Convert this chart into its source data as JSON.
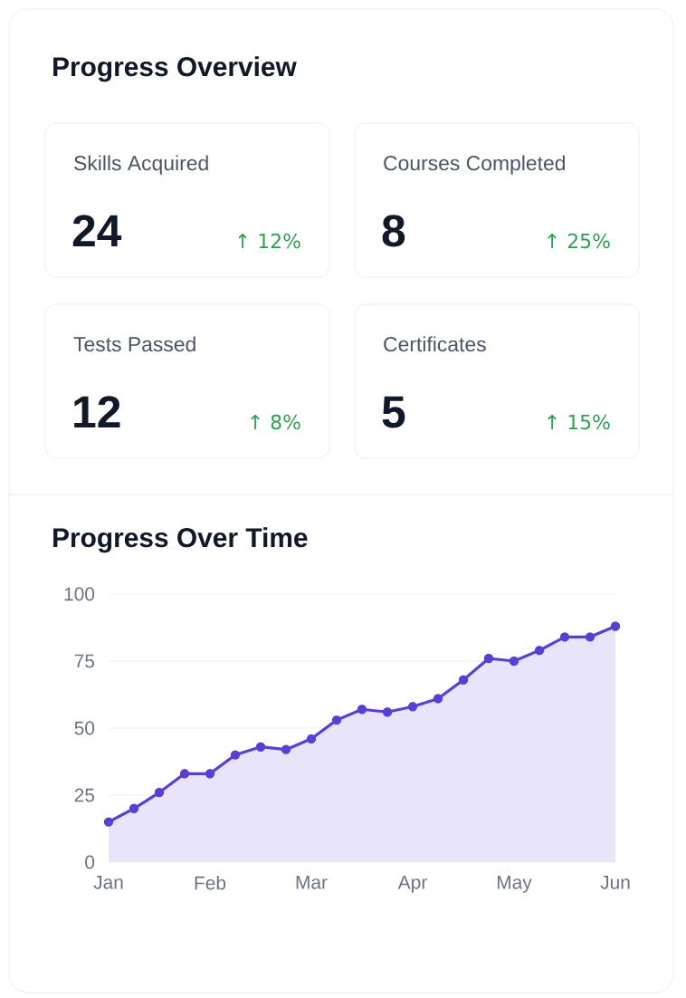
{
  "chart_data": [
    {
      "type": "other",
      "title": "Progress Overview",
      "categories": [
        "Skills Acquired",
        "Courses Completed",
        "Tests Passed",
        "Certificates"
      ],
      "values": [
        24,
        8,
        12,
        5
      ],
      "data_labels": true,
      "annotations": [
        "↑ 12%",
        "↑ 25%",
        "↑ 8%",
        "↑ 15%"
      ]
    },
    {
      "type": "line",
      "title": "Progress Over Time",
      "categories": [
        "Jan",
        null,
        null,
        null,
        "Feb",
        null,
        null,
        null,
        "Mar",
        null,
        null,
        null,
        "Apr",
        null,
        null,
        null,
        "May",
        null,
        null,
        null,
        "Jun"
      ],
      "series": [
        {
          "type": "area",
          "color": "#5b3fd3",
          "values": [
            15,
            20,
            26,
            33,
            33,
            40,
            43,
            42,
            46,
            53,
            57,
            56,
            58,
            61,
            68,
            76,
            75,
            79,
            84,
            84,
            88
          ]
        }
      ],
      "ylim": [
        0,
        100
      ],
      "yticks": [
        0,
        25,
        50,
        75,
        100
      ],
      "grid": "y",
      "marker": "circle"
    }
  ]
}
